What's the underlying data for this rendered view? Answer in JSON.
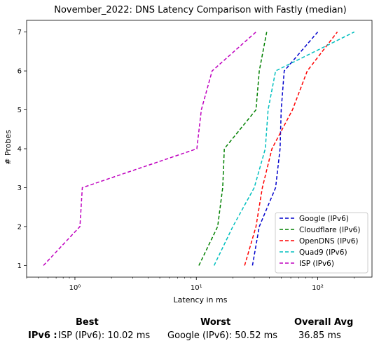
{
  "chart_data": {
    "type": "line",
    "title": "November_2022: DNS Latency Comparison with Fastly (median)",
    "xlabel": "Latency in ms",
    "ylabel": "# Probes",
    "xscale": "log",
    "xlim": [
      0.4,
      280
    ],
    "ylim": [
      0.7,
      7.3
    ],
    "x_ticks": [
      1,
      10,
      100
    ],
    "x_tick_labels": [
      "10⁰",
      "10¹",
      "10²"
    ],
    "y_ticks": [
      1,
      2,
      3,
      4,
      5,
      6,
      7
    ],
    "y_tick_labels": [
      "1",
      "2",
      "3",
      "4",
      "5",
      "6",
      "7"
    ],
    "grid": false,
    "legend_position": "bottom-right",
    "line_style": "dashed",
    "series": [
      {
        "name": "Google (IPv6)",
        "color": "#0000cc",
        "x": [
          29,
          33,
          45,
          49,
          50,
          53,
          100
        ],
        "y": [
          1,
          2,
          3,
          4,
          5,
          6,
          7
        ]
      },
      {
        "name": "Cloudflare (IPv6)",
        "color": "#008000",
        "x": [
          10.5,
          15,
          16.5,
          17,
          31,
          33,
          38
        ],
        "y": [
          1,
          2,
          3,
          4,
          5,
          6,
          7
        ]
      },
      {
        "name": "OpenDNS (IPv6)",
        "color": "#ff0000",
        "x": [
          25,
          31,
          35,
          42,
          62,
          82,
          145
        ],
        "y": [
          1,
          2,
          3,
          4,
          5,
          6,
          7
        ]
      },
      {
        "name": "Quad9 (IPv6)",
        "color": "#00bfbf",
        "x": [
          14,
          20,
          30,
          37,
          39,
          45,
          200
        ],
        "y": [
          1,
          2,
          3,
          4,
          5,
          6,
          7
        ]
      },
      {
        "name": "ISP (IPv6)",
        "color": "#bf00bf",
        "x": [
          0.55,
          1.1,
          1.15,
          10.1,
          11,
          13.5,
          31
        ],
        "y": [
          1,
          2,
          3,
          4,
          5,
          6,
          7
        ]
      }
    ]
  },
  "summary": {
    "headers": {
      "best": "Best",
      "worst": "Worst",
      "avg": "Overall Avg"
    },
    "rows": [
      {
        "label": "IPv6 :",
        "best": "ISP (IPv6): 10.02 ms",
        "worst": "Google (IPv6): 50.52 ms",
        "avg": "36.85 ms"
      }
    ]
  }
}
